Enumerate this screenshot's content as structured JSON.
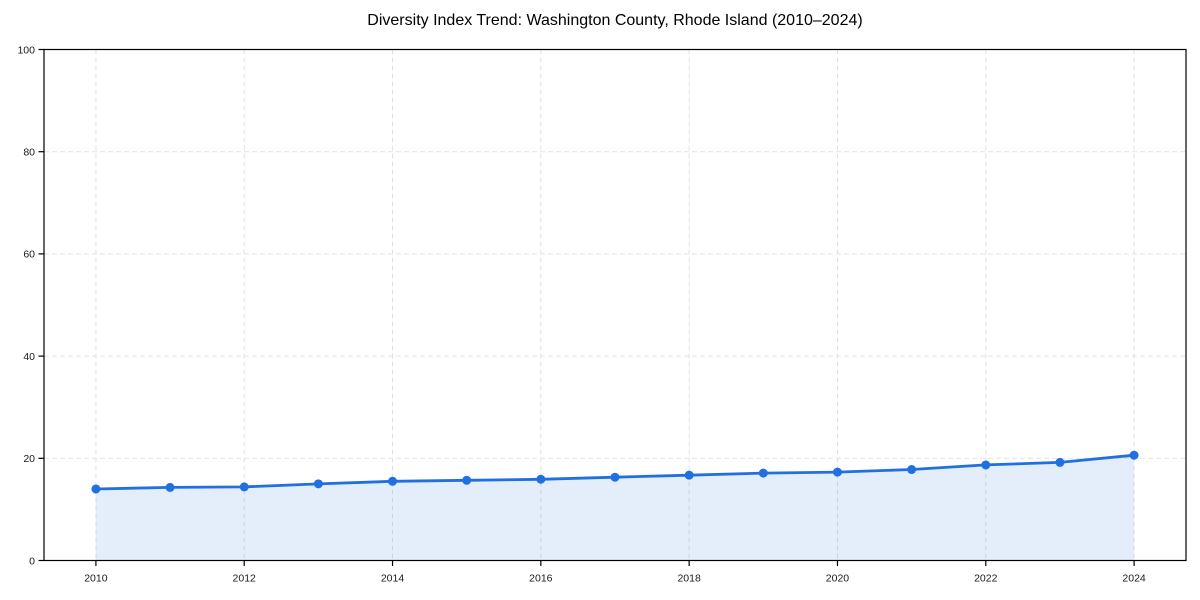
{
  "chart_data": {
    "type": "area",
    "title": "Diversity Index Trend: Washington County, Rhode Island (2010–2024)",
    "xlabel": "",
    "ylabel": "",
    "x": [
      2010,
      2011,
      2012,
      2013,
      2014,
      2015,
      2016,
      2017,
      2018,
      2019,
      2020,
      2021,
      2022,
      2023,
      2024
    ],
    "series": [
      {
        "name": "Diversity Index",
        "values": [
          14.0,
          14.3,
          14.4,
          15.0,
          15.5,
          15.7,
          15.9,
          16.3,
          16.7,
          17.1,
          17.3,
          17.8,
          18.7,
          19.2,
          20.6
        ]
      }
    ],
    "xlim": [
      2009.3,
      2024.7
    ],
    "ylim": [
      0,
      100
    ],
    "xticks": [
      2010,
      2012,
      2014,
      2016,
      2018,
      2020,
      2022,
      2024
    ],
    "yticks": [
      0,
      20,
      40,
      60,
      80,
      100
    ],
    "grid": true,
    "grid_style": "dashed",
    "legend": "none",
    "marker": "circle",
    "colors": {
      "line": "#2170e0",
      "marker": "#2170e0",
      "fill": "rgba(33,112,224,0.12)",
      "grid": "#e2e2e2",
      "spine": "#000000",
      "tick": "#000000",
      "tick_label": "#1a1a1a",
      "title": "#000000",
      "background": "#ffffff"
    }
  }
}
